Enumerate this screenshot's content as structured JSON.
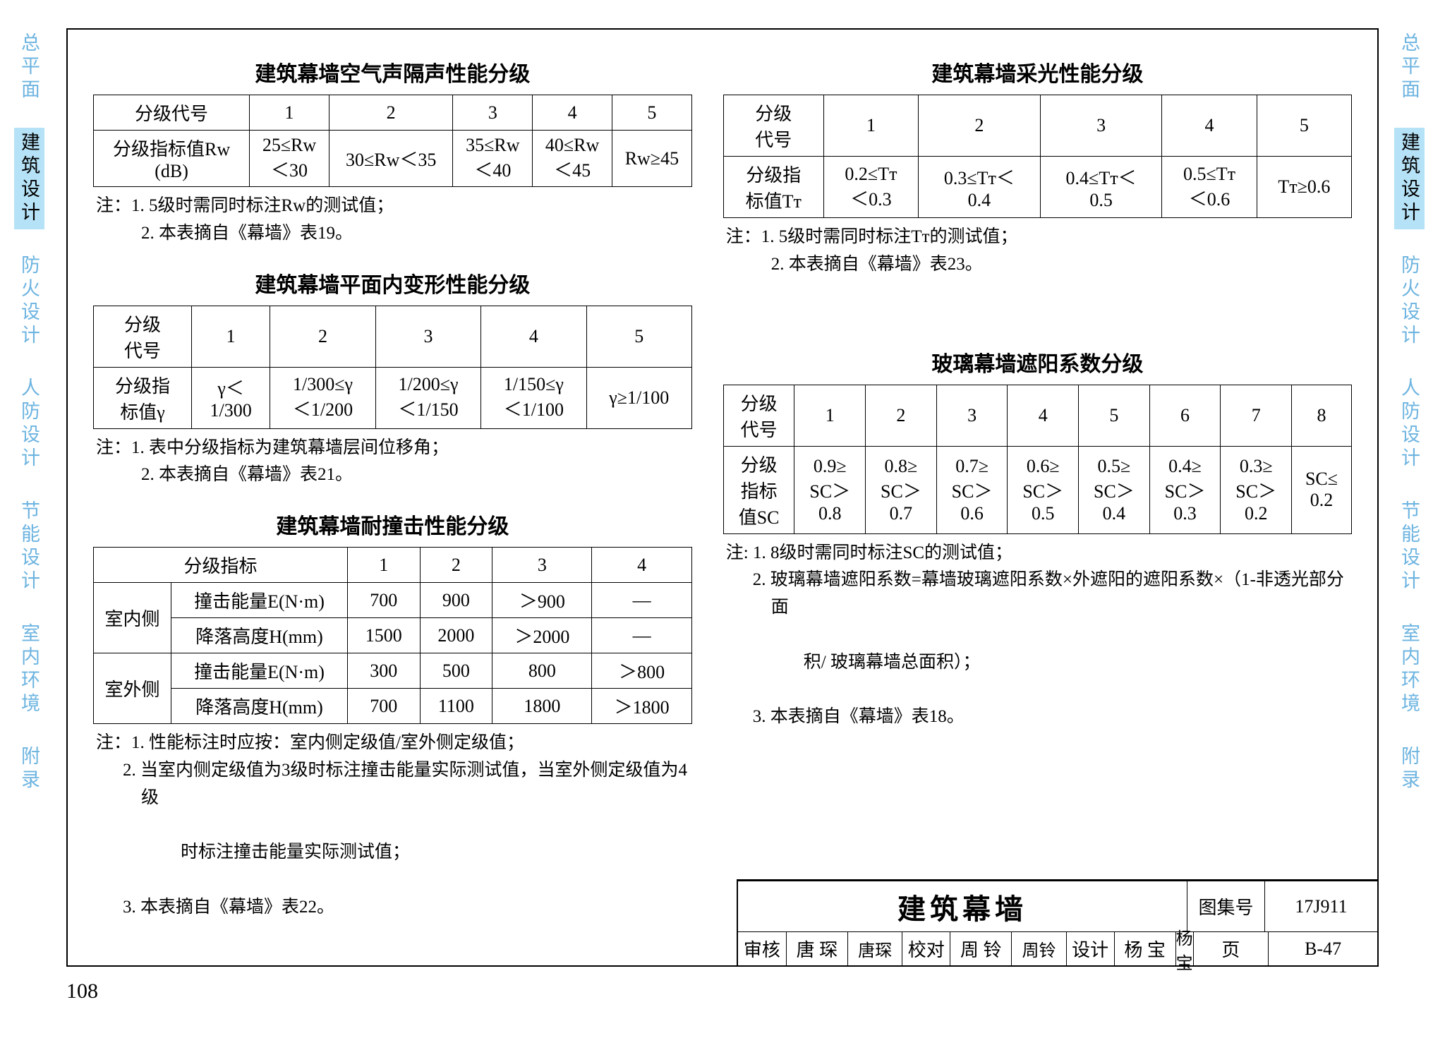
{
  "sidebar": {
    "items": [
      "总平面",
      "建筑设计",
      "防火设计",
      "人防设计",
      "节能设计",
      "室内环境",
      "附录"
    ],
    "active_index": 1
  },
  "page_number": "108",
  "tables": {
    "sound": {
      "title": "建筑幕墙空气声隔声性能分级",
      "header_row": [
        "分级代号",
        "1",
        "2",
        "3",
        "4",
        "5"
      ],
      "data_label_lines": [
        "分级指标值Rᴡ",
        "(dB)"
      ],
      "data_cells": [
        [
          "25≤Rᴡ",
          "＜30"
        ],
        [
          "30≤Rᴡ＜35",
          ""
        ],
        [
          "35≤Rᴡ",
          "＜40"
        ],
        [
          "40≤Rᴡ",
          "＜45"
        ],
        [
          "Rᴡ≥45",
          ""
        ]
      ],
      "notes": [
        "注：1. 5级时需同时标注Rᴡ的测试值；",
        "2. 本表摘自《幕墙》表19。"
      ]
    },
    "deform": {
      "title": "建筑幕墙平面内变形性能分级",
      "header_label_lines": [
        "分级",
        "代号"
      ],
      "header_cells": [
        "1",
        "2",
        "3",
        "4",
        "5"
      ],
      "data_label_lines": [
        "分级指",
        "标值γ"
      ],
      "data_cells": [
        [
          "γ＜",
          "1/300"
        ],
        [
          "1/300≤γ",
          "＜1/200"
        ],
        [
          "1/200≤γ",
          "＜1/150"
        ],
        [
          "1/150≤γ",
          "＜1/100"
        ],
        [
          "γ≥1/100",
          ""
        ]
      ],
      "notes": [
        "注：1. 表中分级指标为建筑幕墙层间位移角；",
        "2. 本表摘自《幕墙》表21。"
      ]
    },
    "impact": {
      "title": "建筑幕墙耐撞击性能分级",
      "header": [
        "分级指标",
        "1",
        "2",
        "3",
        "4"
      ],
      "groups": [
        {
          "side": "室内侧",
          "rows": [
            {
              "label": "撞击能量E(N·m)",
              "cells": [
                "700",
                "900",
                "＞900",
                "—"
              ]
            },
            {
              "label": "降落高度H(mm)",
              "cells": [
                "1500",
                "2000",
                "＞2000",
                "—"
              ]
            }
          ]
        },
        {
          "side": "室外侧",
          "rows": [
            {
              "label": "撞击能量E(N·m)",
              "cells": [
                "300",
                "500",
                "800",
                "＞800"
              ]
            },
            {
              "label": "降落高度H(mm)",
              "cells": [
                "700",
                "1100",
                "1800",
                "＞1800"
              ]
            }
          ]
        }
      ],
      "notes": [
        "注：1. 性能标注时应按：室内侧定级值/室外侧定级值；",
        "2. 当室内侧定级值为3级时标注撞击能量实际测试值，当室外侧定级值为4级",
        "时标注撞击能量实际测试值；",
        "3. 本表摘自《幕墙》表22。"
      ]
    },
    "daylight": {
      "title": "建筑幕墙采光性能分级",
      "header_label_lines": [
        "分级",
        "代号"
      ],
      "header_cells": [
        "1",
        "2",
        "3",
        "4",
        "5"
      ],
      "data_label_lines": [
        "分级指",
        "标值Tᴛ"
      ],
      "data_cells": [
        [
          "0.2≤Tᴛ",
          "＜0.3"
        ],
        [
          "0.3≤Tᴛ＜",
          "0.4"
        ],
        [
          "0.4≤Tᴛ＜",
          "0.5"
        ],
        [
          "0.5≤Tᴛ",
          "＜0.6"
        ],
        [
          "Tᴛ≥0.6",
          ""
        ]
      ],
      "notes": [
        "注：1. 5级时需同时标注Tᴛ的测试值；",
        "2. 本表摘自《幕墙》表23。"
      ]
    },
    "shading": {
      "title": "玻璃幕墙遮阳系数分级",
      "header_label_lines": [
        "分级",
        "代号"
      ],
      "header_cells": [
        "1",
        "2",
        "3",
        "4",
        "5",
        "6",
        "7",
        "8"
      ],
      "data_label_lines": [
        "分级",
        "指标",
        "值SC"
      ],
      "data_cells": [
        [
          "0.9≥",
          "SC＞",
          "0.8"
        ],
        [
          "0.8≥",
          "SC＞",
          "0.7"
        ],
        [
          "0.7≥",
          "SC＞",
          "0.6"
        ],
        [
          "0.6≥",
          "SC＞",
          "0.5"
        ],
        [
          "0.5≥",
          "SC＞",
          "0.4"
        ],
        [
          "0.4≥",
          "SC＞",
          "0.3"
        ],
        [
          "0.3≥",
          "SC＞",
          "0.2"
        ],
        [
          "SC≤",
          "0.2",
          ""
        ]
      ],
      "notes": [
        "注: 1. 8级时需同时标注SC的测试值；",
        "2. 玻璃幕墙遮阳系数=幕墙玻璃遮阳系数×外遮阳的遮阳系数×（1-非透光部分面",
        "积/ 玻璃幕墙总面积）；",
        "3. 本表摘自《幕墙》表18。"
      ]
    }
  },
  "title_block": {
    "main": "建筑幕墙",
    "atlas_label": "图集号",
    "atlas_value": "17J911",
    "row2": {
      "review_label": "审核",
      "review_name": "唐 琛",
      "review_sign": "唐琛",
      "check_label": "校对",
      "check_name": "周 铃",
      "check_sign": "周铃",
      "design_label": "设计",
      "design_name": "杨 宝",
      "design_sign": "杨宝",
      "page_label": "页",
      "page_value": "B-47"
    }
  }
}
